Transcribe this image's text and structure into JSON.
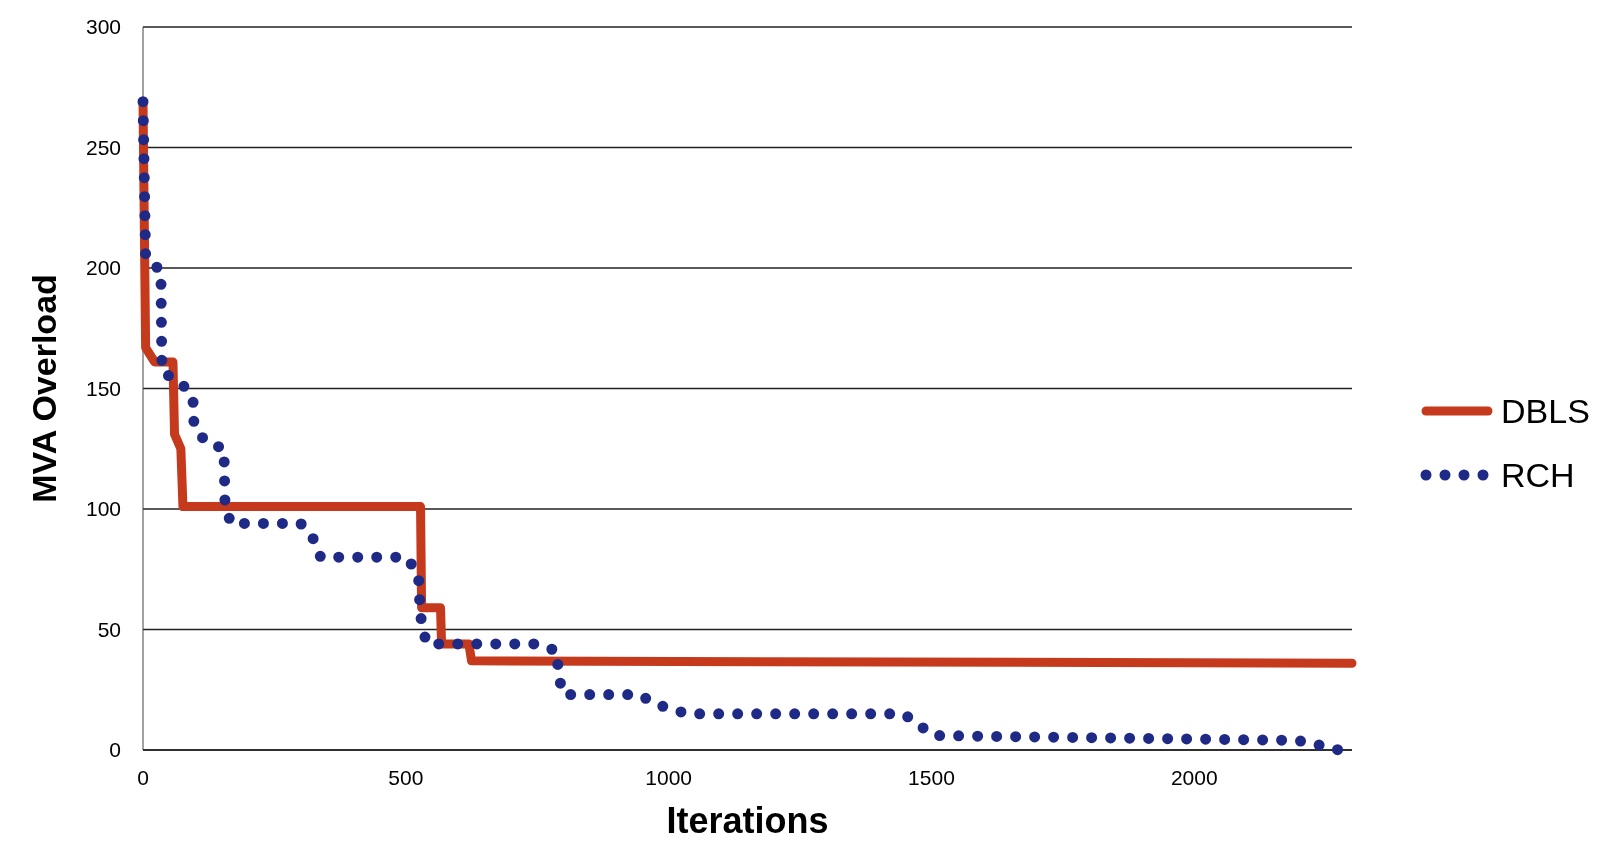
{
  "chart_data": {
    "type": "line",
    "xlabel": "Iterations",
    "ylabel": "MVA Overload",
    "xlim": [
      0,
      2300
    ],
    "ylim": [
      0,
      300
    ],
    "xticks": [
      0,
      500,
      1000,
      1500,
      2000
    ],
    "yticks": [
      0,
      50,
      100,
      150,
      200,
      250,
      300
    ],
    "grid": "y",
    "legend": "right",
    "marker": "none",
    "series": [
      {
        "name": "DBLS",
        "color": "#c53a1c",
        "line_style": "solid",
        "x": [
          0,
          5,
          22,
          57,
          60,
          72,
          76,
          528,
          530,
          566,
          568,
          620,
          625,
          2300
        ],
        "values": [
          269,
          167,
          161,
          161,
          131,
          125,
          101,
          101,
          59,
          59,
          44,
          44,
          37,
          36
        ]
      },
      {
        "name": "RCH",
        "color": "#1f2a86",
        "line_style": "dotted",
        "x": [
          0,
          5,
          34,
          36,
          74,
          95,
          97,
          118,
          154,
          156,
          167,
          300,
          323,
          338,
          501,
          524,
          526,
          530,
          540,
          750,
          788,
          790,
          800,
          944,
          976,
          1035,
          1447,
          1504,
          2194,
          2220,
          2275
        ],
        "values": [
          269,
          204,
          199,
          157,
          152,
          146,
          135,
          128,
          125,
          102,
          94,
          94,
          88,
          80,
          80,
          73,
          63,
          52,
          44,
          44,
          41,
          31,
          23,
          23,
          19,
          15,
          15,
          6,
          4,
          3,
          0
        ]
      }
    ]
  }
}
